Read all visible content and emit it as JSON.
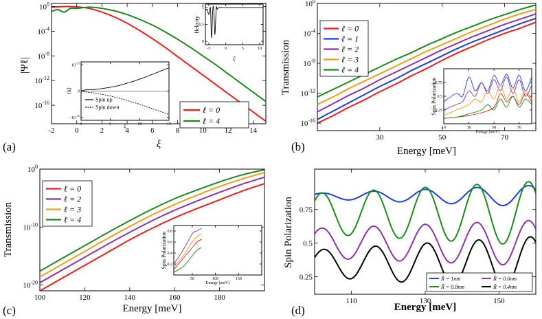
{
  "chart_data": [
    {
      "panel": "a",
      "panel_label": "(a)",
      "type": "line",
      "ylabel": "|Ψℓ|",
      "xlabel": "ξ",
      "yscale": "log",
      "xlim": [
        -2,
        15
      ],
      "ylim_exp": [
        -19,
        0.5
      ],
      "xticks": [
        "-2",
        "0",
        "2",
        "4",
        "6",
        "8",
        "10",
        "12",
        "14"
      ],
      "yticks": [
        "10^0",
        "10^-4",
        "10^-8",
        "10^-12",
        "10^-16"
      ],
      "series": [
        {
          "name": "ℓ = 0",
          "color": "#ee1c1c",
          "x": [
            -2,
            -1,
            0,
            1,
            2,
            3,
            4,
            5,
            6,
            7,
            8,
            9,
            10,
            11,
            12,
            13,
            14,
            15
          ],
          "y_exp": [
            -0.1,
            0,
            -0.05,
            -0.3,
            -0.9,
            -1.7,
            -2.7,
            -3.9,
            -5.2,
            -6.6,
            -8.1,
            -9.6,
            -11.1,
            -12.6,
            -14.1,
            -15.6,
            -17.1,
            -18.6
          ]
        },
        {
          "name": "ℓ = 4",
          "color": "#1a8a1a",
          "x": [
            -2,
            -1.5,
            -1,
            -0.5,
            0,
            1,
            2,
            3,
            4,
            5,
            6,
            7,
            8,
            9,
            10,
            11,
            12,
            13,
            14,
            15
          ],
          "y_exp": [
            -0.8,
            -0.5,
            -0.9,
            -0.3,
            -0.3,
            -0.1,
            -0.3,
            -0.7,
            -1.3,
            -2.1,
            -3.0,
            -4.1,
            -5.3,
            -6.6,
            -8.0,
            -9.4,
            -10.9,
            -12.4,
            -13.9,
            -15.4
          ]
        }
      ],
      "insets": [
        {
          "ylabel": "Helicity",
          "xlabel": "ξ",
          "xticks": [
            "-5",
            "0",
            "5",
            "10"
          ],
          "yticks": [
            "0",
            "0.5",
            "1"
          ],
          "xlim": [
            -6,
            11
          ],
          "ylim": [
            -0.1,
            1.1
          ],
          "series": [
            {
              "name": "helicity",
              "color": "#000000",
              "x": [
                -6,
                -5.5,
                -5,
                -4.5,
                -4.2,
                -3.8,
                -3.5,
                -3.2,
                -2.8,
                -2.5,
                -2,
                0,
                5,
                10,
                11
              ],
              "y": [
                0.9,
                0.95,
                0.8,
                0.98,
                0.1,
                0.97,
                0.9,
                0.2,
                0.98,
                0.95,
                1,
                1,
                1,
                1,
                1
              ]
            }
          ]
        },
        {
          "ylabel": "⟨k⟩",
          "xlabel": "ξ",
          "xticks": [
            "0",
            "5",
            "10",
            "15"
          ],
          "yticks": [
            "10^-15",
            "0",
            "-10^-15"
          ],
          "xlim": [
            0,
            15
          ],
          "ylim": [
            -1,
            1
          ],
          "series": [
            {
              "name": "Spin up",
              "style": "solid",
              "x": [
                0,
                1,
                2,
                3,
                4,
                5,
                6,
                7,
                8,
                9,
                10,
                11,
                12,
                13,
                14,
                15
              ],
              "y": [
                0,
                0.05,
                0.05,
                0.07,
                0.1,
                0.13,
                0.17,
                0.22,
                0.28,
                0.34,
                0.41,
                0.48,
                0.56,
                0.64,
                0.72,
                0.8
              ]
            },
            {
              "name": "Spin down",
              "style": "dashed",
              "x": [
                0,
                1,
                2,
                3,
                4,
                5,
                6,
                7,
                8,
                9,
                10,
                11,
                12,
                13,
                14,
                15
              ],
              "y": [
                0,
                -0.04,
                -0.06,
                -0.09,
                -0.13,
                -0.17,
                -0.22,
                -0.27,
                -0.33,
                -0.39,
                -0.45,
                -0.52,
                -0.59,
                -0.66,
                -0.73,
                -0.8
              ]
            }
          ]
        }
      ]
    },
    {
      "panel": "b",
      "panel_label": "(b)",
      "type": "line",
      "ylabel": "Transmission",
      "xlabel": "Energy [meV]",
      "yscale": "log",
      "xlim": [
        10,
        80
      ],
      "ylim_exp": [
        -17,
        0
      ],
      "xticks": [
        "30",
        "50",
        "70"
      ],
      "yticks": [
        "10^0",
        "10^-4",
        "10^-8",
        "10^-12",
        "10^-16"
      ],
      "series": [
        {
          "name": "ℓ = 0",
          "color": "#ee1c1c",
          "x": [
            10,
            15,
            20,
            25,
            30,
            35,
            40,
            45,
            50,
            55,
            60,
            65,
            70,
            75,
            80
          ],
          "y_exp": [
            -16.0,
            -15.0,
            -13.9,
            -12.9,
            -11.8,
            -10.8,
            -9.7,
            -8.7,
            -7.6,
            -6.6,
            -5.7,
            -4.8,
            -4.0,
            -3.3,
            -2.5
          ]
        },
        {
          "name": "ℓ = 1",
          "color": "#1a3ee8",
          "x": [
            10,
            15,
            20,
            25,
            30,
            35,
            40,
            45,
            50,
            55,
            60,
            65,
            70,
            75,
            80
          ],
          "y_exp": [
            -15.5,
            -14.4,
            -13.3,
            -12.2,
            -11.1,
            -10.1,
            -9.0,
            -8.0,
            -7.0,
            -6.0,
            -5.1,
            -4.3,
            -3.5,
            -2.7,
            -2.0
          ]
        },
        {
          "name": "ℓ = 2",
          "color": "#8a32a6",
          "x": [
            10,
            15,
            20,
            25,
            30,
            35,
            40,
            45,
            50,
            55,
            60,
            65,
            70,
            75,
            80
          ],
          "y_exp": [
            -14.5,
            -13.4,
            -12.3,
            -11.3,
            -10.2,
            -9.2,
            -8.2,
            -7.2,
            -6.2,
            -5.3,
            -4.4,
            -3.6,
            -2.8,
            -2.1,
            -1.4
          ]
        },
        {
          "name": "ℓ = 3",
          "color": "#f29b1c",
          "x": [
            10,
            15,
            20,
            25,
            30,
            35,
            40,
            45,
            50,
            55,
            60,
            65,
            70,
            75,
            80
          ],
          "y_exp": [
            -13.5,
            -12.5,
            -11.4,
            -10.4,
            -9.4,
            -8.4,
            -7.4,
            -6.4,
            -5.5,
            -4.6,
            -3.7,
            -2.9,
            -2.1,
            -1.4,
            -0.8
          ]
        },
        {
          "name": "ℓ = 4",
          "color": "#1a8a1a",
          "x": [
            10,
            15,
            20,
            25,
            30,
            35,
            40,
            45,
            50,
            55,
            60,
            65,
            70,
            75,
            80
          ],
          "y_exp": [
            -12.5,
            -11.5,
            -10.5,
            -9.5,
            -8.5,
            -7.5,
            -6.6,
            -5.6,
            -4.7,
            -3.8,
            -3.0,
            -2.2,
            -1.5,
            -0.8,
            -0.2
          ]
        }
      ],
      "insets": [
        {
          "ylabel": "Spin Polarization",
          "xlabel": "Energy [meV]",
          "xticks": [
            "10",
            "30",
            "50",
            "70"
          ],
          "yticks": [
            "0.25",
            "0.5",
            "0.75"
          ],
          "xlim": [
            10,
            80
          ],
          "ylim": [
            0,
            1
          ],
          "series": [
            {
              "name": "ℓ = 0",
              "color": "#ee1c1c",
              "x": [
                10,
                20,
                30,
                40,
                50,
                55,
                60,
                65,
                70,
                75,
                80
              ],
              "y": [
                0.1,
                0.12,
                0.15,
                0.2,
                0.3,
                0.55,
                0.4,
                0.5,
                0.35,
                0.55,
                0.4
              ]
            },
            {
              "name": "ℓ = 1",
              "color": "#1a3ee8",
              "x": [
                10,
                20,
                25,
                30,
                35,
                40,
                45,
                50,
                55,
                60,
                65,
                70,
                75,
                80
              ],
              "y": [
                0.4,
                0.55,
                0.5,
                0.85,
                0.6,
                0.75,
                0.6,
                0.88,
                0.7,
                0.9,
                0.65,
                0.88,
                0.6,
                0.85
              ]
            },
            {
              "name": "ℓ = 2",
              "color": "#8a32a6",
              "x": [
                10,
                20,
                25,
                30,
                35,
                40,
                45,
                50,
                55,
                60,
                65,
                70,
                75,
                80
              ],
              "y": [
                0.25,
                0.35,
                0.4,
                0.6,
                0.5,
                0.75,
                0.55,
                0.8,
                0.6,
                0.85,
                0.55,
                0.8,
                0.5,
                0.7
              ]
            },
            {
              "name": "ℓ = 3",
              "color": "#f29b1c",
              "x": [
                10,
                20,
                30,
                35,
                40,
                45,
                50,
                55,
                60,
                65,
                70,
                75,
                80
              ],
              "y": [
                0.15,
                0.25,
                0.35,
                0.45,
                0.4,
                0.6,
                0.45,
                0.7,
                0.45,
                0.65,
                0.4,
                0.6,
                0.45
              ]
            },
            {
              "name": "ℓ = 4",
              "color": "#1a8a1a",
              "x": [
                10,
                20,
                30,
                40,
                45,
                50,
                55,
                60,
                65,
                70,
                75,
                80
              ],
              "y": [
                0.1,
                0.12,
                0.18,
                0.25,
                0.35,
                0.25,
                0.45,
                0.3,
                0.5,
                0.3,
                0.45,
                0.35
              ]
            }
          ]
        }
      ]
    },
    {
      "panel": "c",
      "panel_label": "(c)",
      "type": "line",
      "ylabel": "Transmission",
      "xlabel": "Energy [meV]",
      "yscale": "log",
      "xlim": [
        100,
        200
      ],
      "ylim_exp": [
        -21,
        0
      ],
      "xticks": [
        "100",
        "120",
        "140",
        "160",
        "180"
      ],
      "yticks": [
        "10^0",
        "10^-10",
        "10^-20"
      ],
      "series": [
        {
          "name": "ℓ = 0",
          "color": "#ee1c1c",
          "x": [
            100,
            110,
            120,
            130,
            140,
            150,
            160,
            170,
            180,
            190,
            200
          ],
          "y_exp": [
            -21,
            -18.8,
            -16.6,
            -14.4,
            -12.2,
            -10.2,
            -8.4,
            -6.8,
            -5.3,
            -3.8,
            -2.5
          ]
        },
        {
          "name": "ℓ = 2",
          "color": "#8a32a6",
          "x": [
            100,
            110,
            120,
            130,
            140,
            150,
            160,
            170,
            180,
            190,
            200
          ],
          "y_exp": [
            -19.6,
            -17.4,
            -15.2,
            -13.0,
            -10.9,
            -8.9,
            -7.1,
            -5.5,
            -4.0,
            -2.6,
            -1.4
          ]
        },
        {
          "name": "ℓ = 3",
          "color": "#f29b1c",
          "x": [
            100,
            110,
            120,
            130,
            140,
            150,
            160,
            170,
            180,
            190,
            200
          ],
          "y_exp": [
            -18.6,
            -16.4,
            -14.2,
            -12.0,
            -9.9,
            -7.9,
            -6.1,
            -4.5,
            -3.0,
            -1.7,
            -0.6
          ]
        },
        {
          "name": "ℓ = 4",
          "color": "#1a8a1a",
          "x": [
            100,
            110,
            120,
            130,
            140,
            150,
            160,
            170,
            180,
            190,
            200
          ],
          "y_exp": [
            -17.6,
            -15.4,
            -13.2,
            -11.0,
            -8.9,
            -6.9,
            -5.1,
            -3.6,
            -2.2,
            -1.0,
            -0.1
          ]
        }
      ],
      "insets": [
        {
          "ylabel": "Spin Polarization",
          "xlabel": "Energy [meV]",
          "xticks": [
            "50",
            "100",
            "150"
          ],
          "yticks": [
            "0.2",
            "0.4",
            "0.6",
            "0.8"
          ],
          "xlim": [
            10,
            200
          ],
          "ylim": [
            0,
            0.9
          ],
          "series": [
            {
              "name": "ℓ = 0",
              "color": "#ee1c1c",
              "x": [
                10,
                30,
                50,
                60,
                70
              ],
              "y": [
                0.1,
                0.3,
                0.5,
                0.6,
                0.65
              ]
            },
            {
              "name": "ℓ = 2",
              "color": "#8a32a6",
              "x": [
                10,
                30,
                50,
                60,
                70
              ],
              "y": [
                0.2,
                0.45,
                0.75,
                0.8,
                0.85
              ]
            },
            {
              "name": "ℓ = 3",
              "color": "#f29b1c",
              "x": [
                10,
                30,
                50,
                60,
                70
              ],
              "y": [
                0.15,
                0.35,
                0.6,
                0.7,
                0.75
              ]
            },
            {
              "name": "ℓ = 4",
              "color": "#1a8a1a",
              "x": [
                10,
                30,
                50,
                60,
                70
              ],
              "y": [
                0.05,
                0.15,
                0.35,
                0.45,
                0.5
              ]
            }
          ]
        }
      ]
    },
    {
      "panel": "d",
      "panel_label": "(d)",
      "type": "line",
      "ylabel": "Spin Polarization",
      "xlabel": "Energy [meV]",
      "xlim": [
        100,
        160
      ],
      "ylim": [
        0.12,
        1.05
      ],
      "xticks": [
        "110",
        "130",
        "150"
      ],
      "yticks": [
        "0.25",
        "0.5",
        "0.75"
      ],
      "series": [
        {
          "name": "R̃ = 1nm",
          "color": "#1a3ee8",
          "mean": 0.85,
          "amp0": 0.02,
          "amp1": 0.08,
          "period": 14,
          "phase": 2
        },
        {
          "name": "R̃ = 0.8nm",
          "color": "#1a8a1a",
          "mean": 0.72,
          "amp0": 0.15,
          "amp1": 0.24,
          "period": 14,
          "phase": 2
        },
        {
          "name": "R̃ = 0.6nm",
          "color": "#8a32a6",
          "mean": 0.5,
          "amp0": 0.11,
          "amp1": 0.17,
          "period": 14,
          "phase": 2
        },
        {
          "name": "R̃ = 0.4nm",
          "color": "#000000",
          "mean": 0.35,
          "amp0": 0.1,
          "amp1": 0.2,
          "period": 14,
          "phase": 2.5
        }
      ]
    }
  ],
  "legend_line_labels": {
    "spin_up": "Spin up",
    "spin_down": "Spin down"
  }
}
